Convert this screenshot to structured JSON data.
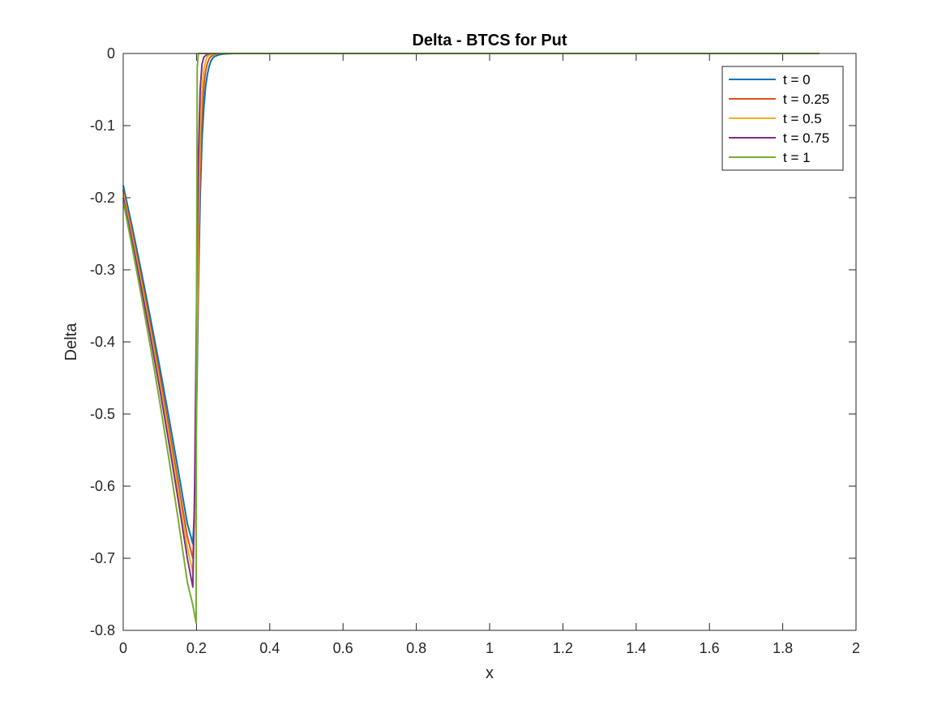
{
  "chart_data": {
    "type": "line",
    "title": "Delta - BTCS for Put",
    "xlabel": "x",
    "ylabel": "Delta",
    "xlim": [
      0,
      2
    ],
    "ylim": [
      -0.8,
      0
    ],
    "xticks": [
      "0",
      "0.2",
      "0.4",
      "0.6",
      "0.8",
      "1",
      "1.2",
      "1.4",
      "1.6",
      "1.8",
      "2"
    ],
    "yticks": [
      "0",
      "-0.1",
      "-0.2",
      "-0.3",
      "-0.4",
      "-0.5",
      "-0.6",
      "-0.7",
      "-0.8"
    ],
    "grid": false,
    "legend_position": "top-right",
    "series": [
      {
        "name": "t = 0",
        "color": "#0072BD",
        "x": [
          0,
          0.025,
          0.05,
          0.075,
          0.1,
          0.125,
          0.15,
          0.175,
          0.19,
          0.195,
          0.2,
          0.205,
          0.21,
          0.215,
          0.22,
          0.225,
          0.23,
          0.235,
          0.24,
          0.245,
          0.25,
          0.26,
          0.27,
          0.28,
          0.3,
          1.9
        ],
        "y": [
          -0.183,
          -0.242,
          -0.304,
          -0.369,
          -0.436,
          -0.506,
          -0.578,
          -0.652,
          -0.68,
          -0.63,
          -0.5,
          -0.33,
          -0.2,
          -0.12,
          -0.075,
          -0.045,
          -0.028,
          -0.017,
          -0.01,
          -0.006,
          -0.004,
          -0.002,
          -0.001,
          -0.0005,
          0,
          0
        ]
      },
      {
        "name": "t = 0.25",
        "color": "#D95319",
        "x": [
          0,
          0.025,
          0.05,
          0.075,
          0.1,
          0.125,
          0.15,
          0.175,
          0.19,
          0.195,
          0.2,
          0.205,
          0.21,
          0.215,
          0.22,
          0.225,
          0.23,
          0.235,
          0.24,
          0.25,
          0.26,
          0.28,
          1.9
        ],
        "y": [
          -0.19,
          -0.25,
          -0.313,
          -0.379,
          -0.448,
          -0.52,
          -0.594,
          -0.67,
          -0.7,
          -0.64,
          -0.48,
          -0.29,
          -0.16,
          -0.085,
          -0.045,
          -0.024,
          -0.013,
          -0.007,
          -0.004,
          -0.001,
          -0.0005,
          0,
          0
        ]
      },
      {
        "name": "t = 0.5",
        "color": "#EDB120",
        "x": [
          0,
          0.025,
          0.05,
          0.075,
          0.1,
          0.125,
          0.15,
          0.175,
          0.19,
          0.195,
          0.2,
          0.205,
          0.21,
          0.215,
          0.22,
          0.225,
          0.23,
          0.24,
          0.25,
          0.26,
          1.9
        ],
        "y": [
          -0.195,
          -0.256,
          -0.32,
          -0.387,
          -0.457,
          -0.53,
          -0.606,
          -0.685,
          -0.72,
          -0.64,
          -0.44,
          -0.24,
          -0.11,
          -0.05,
          -0.022,
          -0.01,
          -0.004,
          -0.001,
          -0.0003,
          0,
          0
        ]
      },
      {
        "name": "t = 0.75",
        "color": "#7E2F8E",
        "x": [
          0,
          0.025,
          0.05,
          0.075,
          0.1,
          0.125,
          0.15,
          0.175,
          0.19,
          0.195,
          0.2,
          0.205,
          0.21,
          0.215,
          0.22,
          0.23,
          0.24,
          0.25,
          1.9
        ],
        "y": [
          -0.2,
          -0.262,
          -0.327,
          -0.395,
          -0.466,
          -0.541,
          -0.619,
          -0.7,
          -0.74,
          -0.6,
          -0.35,
          -0.15,
          -0.05,
          -0.015,
          -0.005,
          -0.001,
          0,
          0,
          0
        ]
      },
      {
        "name": "t = 1",
        "color": "#77AC30",
        "x": [
          0,
          0.025,
          0.05,
          0.075,
          0.1,
          0.125,
          0.15,
          0.175,
          0.19,
          0.199,
          0.2,
          0.202,
          0.205,
          0.21,
          1.9
        ],
        "y": [
          -0.205,
          -0.27,
          -0.338,
          -0.409,
          -0.484,
          -0.563,
          -0.646,
          -0.733,
          -0.765,
          -0.79,
          -0.4,
          -0.02,
          0,
          0,
          0
        ]
      }
    ]
  }
}
